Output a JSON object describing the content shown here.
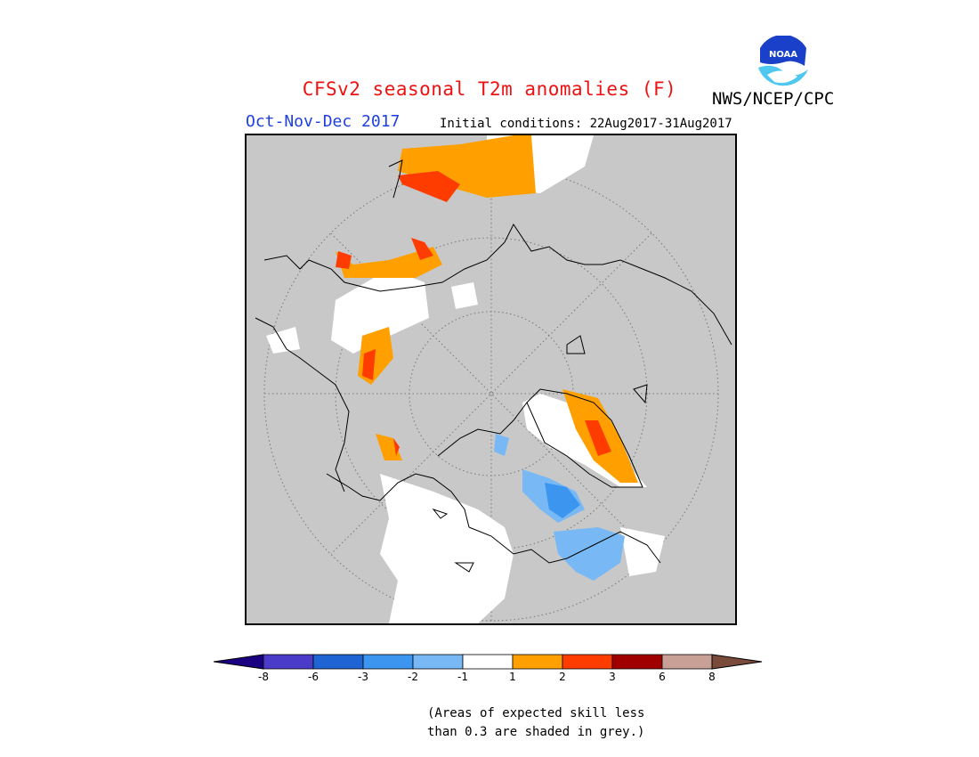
{
  "header": {
    "title": "CFSv2 seasonal T2m anomalies (F)",
    "agency": "NWS/NCEP/CPC",
    "logo_text": "NOAA",
    "season": "Oct-Nov-Dec 2017",
    "initial_conditions": "Initial conditions: 22Aug2017-31Aug2017"
  },
  "map": {
    "projection": "north polar stereographic",
    "background_color": "#c8c8c8",
    "ocean_missing_color": "#ffffff"
  },
  "legend": {
    "colors": [
      "#1a0080",
      "#4a3cc8",
      "#1e64d2",
      "#3c96f0",
      "#78b9f5",
      "#ffffff",
      "#ffa000",
      "#ff3c00",
      "#a00000",
      "#c8a096",
      "#7a4a3a"
    ],
    "labels": [
      "-8",
      "-6",
      "-3",
      "-2",
      "-1",
      "1",
      "2",
      "3",
      "6",
      "8"
    ]
  },
  "footnote": {
    "line1": "(Areas of expected skill less",
    "line2": "than 0.3 are shaded in grey.)"
  }
}
